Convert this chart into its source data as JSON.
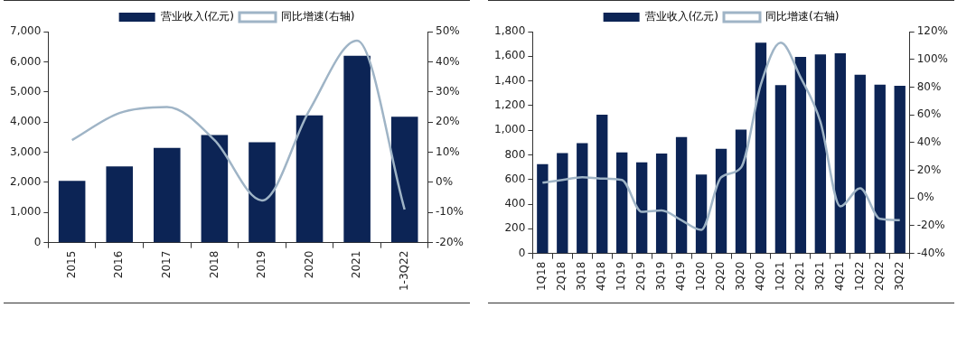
{
  "chart_data": [
    {
      "type": "bar",
      "categories": [
        "2015",
        "2016",
        "2017",
        "2018",
        "2019",
        "2020",
        "2021",
        "1-3Q22"
      ],
      "grid": false,
      "legend": "top",
      "ylim": [
        0,
        7000
      ],
      "yticks": [
        {
          "value": 0,
          "label": "0"
        },
        {
          "value": 1000,
          "label": "1,000"
        },
        {
          "value": 2000,
          "label": "2,000"
        },
        {
          "value": 3000,
          "label": "3,000"
        },
        {
          "value": 4000,
          "label": "4,000"
        },
        {
          "value": 5000,
          "label": "5,000"
        },
        {
          "value": 6000,
          "label": "6,000"
        },
        {
          "value": 7000,
          "label": "7,000"
        }
      ],
      "y2lim": [
        -20,
        50
      ],
      "y2ticks": [
        {
          "value": -20,
          "label": "-20%"
        },
        {
          "value": -10,
          "label": "-10%"
        },
        {
          "value": 0,
          "label": "0%"
        },
        {
          "value": 10,
          "label": "10%"
        },
        {
          "value": 20,
          "label": "20%"
        },
        {
          "value": 30,
          "label": "30%"
        },
        {
          "value": 40,
          "label": "40%"
        },
        {
          "value": 50,
          "label": "50%"
        }
      ],
      "marker": "none",
      "series": [
        {
          "name": "营业收入(亿元)",
          "color": "#0c2455",
          "values": [
            2050,
            2530,
            3140,
            3570,
            3330,
            4220,
            6200,
            4180
          ]
        },
        {
          "name": "同比增速(右轴)",
          "type": "line",
          "axis": "y2",
          "color": "#9fb4c6",
          "values": [
            14,
            23,
            25,
            14,
            -6,
            24,
            47,
            -9
          ]
        }
      ]
    },
    {
      "type": "bar",
      "categories": [
        "1Q18",
        "2Q18",
        "3Q18",
        "4Q18",
        "1Q19",
        "2Q19",
        "3Q19",
        "4Q19",
        "1Q20",
        "2Q20",
        "3Q20",
        "4Q20",
        "1Q21",
        "2Q21",
        "3Q21",
        "4Q21",
        "1Q22",
        "2Q22",
        "3Q22"
      ],
      "grid": false,
      "legend": "top",
      "ylim": [
        0,
        1800
      ],
      "yticks": [
        {
          "value": 0,
          "label": "0"
        },
        {
          "value": 200,
          "label": "200"
        },
        {
          "value": 400,
          "label": "400"
        },
        {
          "value": 600,
          "label": "600"
        },
        {
          "value": 800,
          "label": "800"
        },
        {
          "value": 1000,
          "label": "1,000"
        },
        {
          "value": 1200,
          "label": "1,200"
        },
        {
          "value": 1400,
          "label": "1,400"
        },
        {
          "value": 1600,
          "label": "1,600"
        },
        {
          "value": 1800,
          "label": "1,800"
        }
      ],
      "y2lim": [
        -40,
        120
      ],
      "y2ticks": [
        {
          "value": -40,
          "label": "-40%"
        },
        {
          "value": -20,
          "label": "-20%"
        },
        {
          "value": 0,
          "label": "0%"
        },
        {
          "value": 20,
          "label": "20%"
        },
        {
          "value": 40,
          "label": "40%"
        },
        {
          "value": 60,
          "label": "60%"
        },
        {
          "value": 80,
          "label": "80%"
        },
        {
          "value": 100,
          "label": "100%"
        },
        {
          "value": 120,
          "label": "120%"
        }
      ],
      "marker": "none",
      "series": [
        {
          "name": "营业收入(亿元)",
          "color": "#0c2455",
          "values": [
            725,
            815,
            895,
            1125,
            820,
            740,
            810,
            945,
            640,
            850,
            1005,
            1710,
            1365,
            1595,
            1615,
            1625,
            1450,
            1370,
            1360
          ]
        },
        {
          "name": "同比增速(右轴)",
          "type": "line",
          "axis": "y2",
          "color": "#9fb4c6",
          "values": [
            11,
            13,
            15,
            14,
            13,
            -10,
            -9,
            -16,
            -23,
            15,
            22,
            82,
            112,
            87,
            55,
            -6,
            7,
            -15,
            -16
          ]
        }
      ]
    }
  ]
}
